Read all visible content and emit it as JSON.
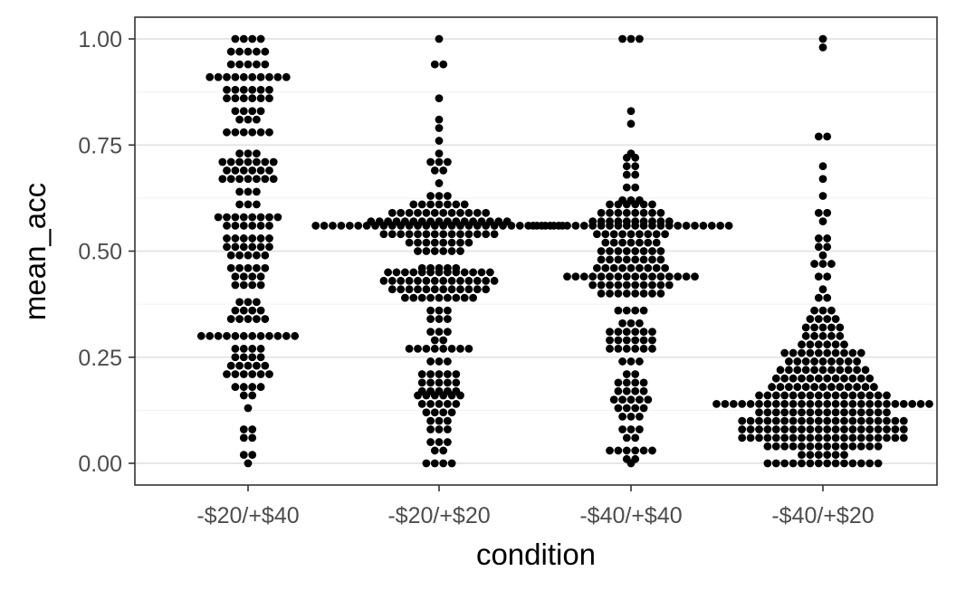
{
  "chart_data": {
    "type": "dotplot",
    "title": "",
    "xlabel": "condition",
    "ylabel": "mean_acc",
    "ylim": [
      -0.05,
      1.05
    ],
    "yticks": [
      0.0,
      0.25,
      0.5,
      0.75,
      1.0
    ],
    "ytick_labels": [
      "0.00",
      "0.25",
      "0.50",
      "0.75",
      "1.00"
    ],
    "categories": [
      "-$20/+$40",
      "-$20/+$20",
      "-$40/+$40",
      "-$40/+$20"
    ],
    "grid": true,
    "legend": "none",
    "point_color": "#000000",
    "series": [
      {
        "category": "-$20/+$40",
        "bins": [
          {
            "y": 1.0,
            "count": 4
          },
          {
            "y": 0.97,
            "count": 5
          },
          {
            "y": 0.94,
            "count": 5
          },
          {
            "y": 0.91,
            "count": 10
          },
          {
            "y": 0.88,
            "count": 6
          },
          {
            "y": 0.86,
            "count": 6
          },
          {
            "y": 0.83,
            "count": 4
          },
          {
            "y": 0.81,
            "count": 3
          },
          {
            "y": 0.78,
            "count": 6
          },
          {
            "y": 0.73,
            "count": 3
          },
          {
            "y": 0.71,
            "count": 7
          },
          {
            "y": 0.69,
            "count": 6
          },
          {
            "y": 0.67,
            "count": 7
          },
          {
            "y": 0.64,
            "count": 3
          },
          {
            "y": 0.61,
            "count": 3
          },
          {
            "y": 0.58,
            "count": 8
          },
          {
            "y": 0.56,
            "count": 6
          },
          {
            "y": 0.53,
            "count": 6
          },
          {
            "y": 0.51,
            "count": 6
          },
          {
            "y": 0.49,
            "count": 5
          },
          {
            "y": 0.46,
            "count": 5
          },
          {
            "y": 0.44,
            "count": 4
          },
          {
            "y": 0.42,
            "count": 4
          },
          {
            "y": 0.38,
            "count": 3
          },
          {
            "y": 0.36,
            "count": 4
          },
          {
            "y": 0.34,
            "count": 5
          },
          {
            "y": 0.3,
            "count": 12
          },
          {
            "y": 0.27,
            "count": 4
          },
          {
            "y": 0.25,
            "count": 4
          },
          {
            "y": 0.23,
            "count": 5
          },
          {
            "y": 0.21,
            "count": 6
          },
          {
            "y": 0.18,
            "count": 4
          },
          {
            "y": 0.16,
            "count": 2
          },
          {
            "y": 0.13,
            "count": 1
          },
          {
            "y": 0.08,
            "count": 2
          },
          {
            "y": 0.06,
            "count": 2
          },
          {
            "y": 0.02,
            "count": 2
          },
          {
            "y": 0.0,
            "count": 1
          }
        ]
      },
      {
        "category": "-$20/+$20",
        "bins": [
          {
            "y": 1.0,
            "count": 1
          },
          {
            "y": 0.94,
            "count": 2
          },
          {
            "y": 0.86,
            "count": 1
          },
          {
            "y": 0.81,
            "count": 1
          },
          {
            "y": 0.79,
            "count": 1
          },
          {
            "y": 0.76,
            "count": 1
          },
          {
            "y": 0.73,
            "count": 1
          },
          {
            "y": 0.71,
            "count": 3
          },
          {
            "y": 0.69,
            "count": 2
          },
          {
            "y": 0.66,
            "count": 1
          },
          {
            "y": 0.63,
            "count": 3
          },
          {
            "y": 0.61,
            "count": 7
          },
          {
            "y": 0.59,
            "count": 12
          },
          {
            "y": 0.57,
            "count": 17
          },
          {
            "y": 0.56,
            "count": 30
          },
          {
            "y": 0.54,
            "count": 14
          },
          {
            "y": 0.52,
            "count": 8
          },
          {
            "y": 0.5,
            "count": 6
          },
          {
            "y": 0.46,
            "count": 5
          },
          {
            "y": 0.45,
            "count": 13
          },
          {
            "y": 0.43,
            "count": 14
          },
          {
            "y": 0.41,
            "count": 12
          },
          {
            "y": 0.39,
            "count": 9
          },
          {
            "y": 0.36,
            "count": 3
          },
          {
            "y": 0.34,
            "count": 3
          },
          {
            "y": 0.31,
            "count": 3
          },
          {
            "y": 0.29,
            "count": 2
          },
          {
            "y": 0.27,
            "count": 8
          },
          {
            "y": 0.24,
            "count": 3
          },
          {
            "y": 0.21,
            "count": 5
          },
          {
            "y": 0.19,
            "count": 5
          },
          {
            "y": 0.17,
            "count": 5
          },
          {
            "y": 0.16,
            "count": 6
          },
          {
            "y": 0.14,
            "count": 5
          },
          {
            "y": 0.12,
            "count": 4
          },
          {
            "y": 0.1,
            "count": 3
          },
          {
            "y": 0.08,
            "count": 3
          },
          {
            "y": 0.05,
            "count": 3
          },
          {
            "y": 0.03,
            "count": 2
          },
          {
            "y": 0.0,
            "count": 4
          }
        ]
      },
      {
        "category": "-$40/+$40",
        "bins": [
          {
            "y": 1.0,
            "count": 3
          },
          {
            "y": 0.83,
            "count": 1
          },
          {
            "y": 0.8,
            "count": 1
          },
          {
            "y": 0.73,
            "count": 1
          },
          {
            "y": 0.72,
            "count": 2
          },
          {
            "y": 0.7,
            "count": 2
          },
          {
            "y": 0.68,
            "count": 2
          },
          {
            "y": 0.65,
            "count": 2
          },
          {
            "y": 0.62,
            "count": 3
          },
          {
            "y": 0.61,
            "count": 6
          },
          {
            "y": 0.59,
            "count": 8
          },
          {
            "y": 0.57,
            "count": 10
          },
          {
            "y": 0.56,
            "count": 24
          },
          {
            "y": 0.54,
            "count": 9
          },
          {
            "y": 0.52,
            "count": 7
          },
          {
            "y": 0.5,
            "count": 8
          },
          {
            "y": 0.48,
            "count": 8
          },
          {
            "y": 0.46,
            "count": 9
          },
          {
            "y": 0.44,
            "count": 16
          },
          {
            "y": 0.42,
            "count": 10
          },
          {
            "y": 0.4,
            "count": 8
          },
          {
            "y": 0.36,
            "count": 4
          },
          {
            "y": 0.33,
            "count": 3
          },
          {
            "y": 0.31,
            "count": 6
          },
          {
            "y": 0.29,
            "count": 6
          },
          {
            "y": 0.27,
            "count": 6
          },
          {
            "y": 0.24,
            "count": 3
          },
          {
            "y": 0.21,
            "count": 2
          },
          {
            "y": 0.19,
            "count": 4
          },
          {
            "y": 0.17,
            "count": 4
          },
          {
            "y": 0.15,
            "count": 5
          },
          {
            "y": 0.13,
            "count": 4
          },
          {
            "y": 0.11,
            "count": 3
          },
          {
            "y": 0.08,
            "count": 3
          },
          {
            "y": 0.06,
            "count": 2
          },
          {
            "y": 0.03,
            "count": 6
          },
          {
            "y": 0.01,
            "count": 2
          },
          {
            "y": 0.0,
            "count": 1
          }
        ]
      },
      {
        "category": "-$40/+$20",
        "bins": [
          {
            "y": 1.0,
            "count": 1
          },
          {
            "y": 0.98,
            "count": 1
          },
          {
            "y": 0.77,
            "count": 2
          },
          {
            "y": 0.7,
            "count": 1
          },
          {
            "y": 0.67,
            "count": 1
          },
          {
            "y": 0.63,
            "count": 1
          },
          {
            "y": 0.59,
            "count": 2
          },
          {
            "y": 0.57,
            "count": 1
          },
          {
            "y": 0.53,
            "count": 2
          },
          {
            "y": 0.51,
            "count": 2
          },
          {
            "y": 0.49,
            "count": 1
          },
          {
            "y": 0.47,
            "count": 3
          },
          {
            "y": 0.44,
            "count": 2
          },
          {
            "y": 0.41,
            "count": 1
          },
          {
            "y": 0.39,
            "count": 2
          },
          {
            "y": 0.36,
            "count": 3
          },
          {
            "y": 0.34,
            "count": 4
          },
          {
            "y": 0.32,
            "count": 5
          },
          {
            "y": 0.3,
            "count": 5
          },
          {
            "y": 0.28,
            "count": 6
          },
          {
            "y": 0.26,
            "count": 10
          },
          {
            "y": 0.24,
            "count": 9
          },
          {
            "y": 0.22,
            "count": 11
          },
          {
            "y": 0.2,
            "count": 12
          },
          {
            "y": 0.18,
            "count": 13
          },
          {
            "y": 0.16,
            "count": 16
          },
          {
            "y": 0.14,
            "count": 26
          },
          {
            "y": 0.12,
            "count": 16
          },
          {
            "y": 0.1,
            "count": 20
          },
          {
            "y": 0.08,
            "count": 20
          },
          {
            "y": 0.06,
            "count": 20
          },
          {
            "y": 0.04,
            "count": 14
          },
          {
            "y": 0.02,
            "count": 6
          },
          {
            "y": 0.0,
            "count": 14
          }
        ]
      }
    ]
  }
}
